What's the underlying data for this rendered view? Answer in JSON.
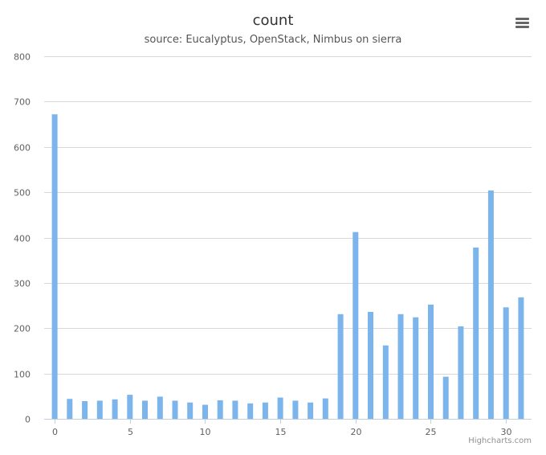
{
  "chart_data": {
    "type": "bar",
    "title": "count",
    "subtitle": "source: Eucalyptus, OpenStack, Nimbus on sierra",
    "x": [
      0,
      1,
      2,
      3,
      4,
      5,
      6,
      7,
      8,
      9,
      10,
      11,
      12,
      13,
      14,
      15,
      16,
      17,
      18,
      19,
      20,
      21,
      22,
      23,
      24,
      25,
      26,
      27,
      28,
      29,
      30,
      31
    ],
    "values": [
      672,
      44,
      39,
      40,
      43,
      53,
      40,
      49,
      40,
      36,
      31,
      41,
      40,
      34,
      36,
      47,
      40,
      36,
      45,
      231,
      412,
      236,
      162,
      231,
      224,
      252,
      93,
      204,
      378,
      504,
      246,
      268
    ],
    "xticks": [
      0,
      5,
      10,
      15,
      20,
      25,
      30
    ],
    "yticks": [
      0,
      100,
      200,
      300,
      400,
      500,
      600,
      700,
      800
    ],
    "ylim": [
      0,
      800
    ],
    "xlim": [
      -0.7,
      31.7
    ],
    "grid": true,
    "legend": "none",
    "color": "#7cb5ec"
  },
  "credits": "Highcharts.com",
  "menu_icon": "hamburger-menu-icon"
}
